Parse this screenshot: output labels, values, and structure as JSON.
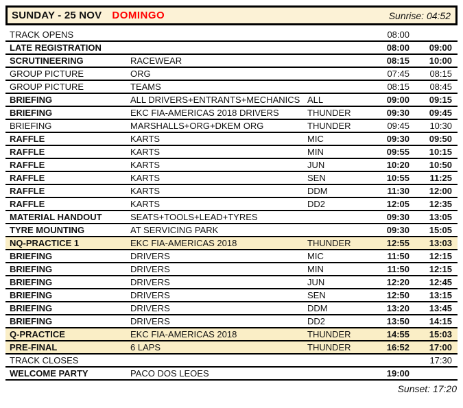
{
  "header": {
    "day_title": "SUNDAY - 25 NOV",
    "day_name_local": "DOMINGO",
    "sunrise_label": "Sunrise: 04:52"
  },
  "footer": {
    "sunset_label": "Sunset: 17:20"
  },
  "colors": {
    "header_background": "#FCF2D6",
    "highlight_row_background": "#FAEEC6",
    "accent_red": "#FF0000",
    "text": "#111111"
  },
  "schedule": {
    "rows": [
      {
        "activity": "TRACK OPENS",
        "detail": "",
        "category": "",
        "start": "08:00",
        "end": "",
        "bold": false,
        "highlight": false
      },
      {
        "activity": "LATE REGISTRATION",
        "detail": "",
        "category": "",
        "start": "08:00",
        "end": "09:00",
        "bold": true,
        "highlight": false
      },
      {
        "activity": "SCRUTINEERING",
        "detail": "RACEWEAR",
        "category": "",
        "start": "08:15",
        "end": "10:00",
        "bold": true,
        "highlight": false
      },
      {
        "activity": "GROUP PICTURE",
        "detail": "ORG",
        "category": "",
        "start": "07:45",
        "end": "08:15",
        "bold": false,
        "highlight": false
      },
      {
        "activity": "GROUP PICTURE",
        "detail": "TEAMS",
        "category": "",
        "start": "08:15",
        "end": "08:45",
        "bold": false,
        "highlight": false
      },
      {
        "activity": "BRIEFING",
        "detail": "ALL DRIVERS+ENTRANTS+MECHANICS",
        "category": "ALL",
        "start": "09:00",
        "end": "09:15",
        "bold": true,
        "highlight": false
      },
      {
        "activity": "BRIEFING",
        "detail": "EKC FIA-AMERICAS 2018 DRIVERS",
        "category": "THUNDER",
        "start": "09:30",
        "end": "09:45",
        "bold": true,
        "highlight": false
      },
      {
        "activity": "BRIEFING",
        "detail": "MARSHALLS+ORG+DKEM ORG",
        "category": "THUNDER",
        "start": "09:45",
        "end": "10:30",
        "bold": false,
        "highlight": false
      },
      {
        "activity": "RAFFLE",
        "detail": "KARTS",
        "category": "MIC",
        "start": "09:30",
        "end": "09:50",
        "bold": true,
        "highlight": false
      },
      {
        "activity": "RAFFLE",
        "detail": "KARTS",
        "category": "MIN",
        "start": "09:55",
        "end": "10:15",
        "bold": true,
        "highlight": false
      },
      {
        "activity": "RAFFLE",
        "detail": "KARTS",
        "category": "JUN",
        "start": "10:20",
        "end": "10:50",
        "bold": true,
        "highlight": false
      },
      {
        "activity": "RAFFLE",
        "detail": "KARTS",
        "category": "SEN",
        "start": "10:55",
        "end": "11:25",
        "bold": true,
        "highlight": false
      },
      {
        "activity": "RAFFLE",
        "detail": "KARTS",
        "category": "DDM",
        "start": "11:30",
        "end": "12:00",
        "bold": true,
        "highlight": false
      },
      {
        "activity": "RAFFLE",
        "detail": "KARTS",
        "category": "DD2",
        "start": "12:05",
        "end": "12:35",
        "bold": true,
        "highlight": false
      },
      {
        "activity": "MATERIAL HANDOUT",
        "detail": "SEATS+TOOLS+LEAD+TYRES",
        "category": "",
        "start": "09:30",
        "end": "13:05",
        "bold": true,
        "highlight": false
      },
      {
        "activity": "TYRE MOUNTING",
        "detail": "AT SERVICING PARK",
        "category": "",
        "start": "09:30",
        "end": "15:05",
        "bold": true,
        "highlight": false
      },
      {
        "activity": "NQ-PRACTICE 1",
        "detail": "EKC FIA-AMERICAS 2018",
        "category": "THUNDER",
        "start": "12:55",
        "end": "13:03",
        "bold": true,
        "highlight": true
      },
      {
        "activity": "BRIEFING",
        "detail": "DRIVERS",
        "category": "MIC",
        "start": "11:50",
        "end": "12:15",
        "bold": true,
        "highlight": false
      },
      {
        "activity": "BRIEFING",
        "detail": "DRIVERS",
        "category": "MIN",
        "start": "11:50",
        "end": "12:15",
        "bold": true,
        "highlight": false
      },
      {
        "activity": "BRIEFING",
        "detail": "DRIVERS",
        "category": "JUN",
        "start": "12:20",
        "end": "12:45",
        "bold": true,
        "highlight": false
      },
      {
        "activity": "BRIEFING",
        "detail": "DRIVERS",
        "category": "SEN",
        "start": "12:50",
        "end": "13:15",
        "bold": true,
        "highlight": false
      },
      {
        "activity": "BRIEFING",
        "detail": "DRIVERS",
        "category": "DDM",
        "start": "13:20",
        "end": "13:45",
        "bold": true,
        "highlight": false
      },
      {
        "activity": "BRIEFING",
        "detail": "DRIVERS",
        "category": "DD2",
        "start": "13:50",
        "end": "14:15",
        "bold": true,
        "highlight": false
      },
      {
        "activity": "Q-PRACTICE",
        "detail": "EKC FIA-AMERICAS 2018",
        "category": "THUNDER",
        "start": "14:55",
        "end": "15:03",
        "bold": true,
        "highlight": true
      },
      {
        "activity": "PRE-FINAL",
        "detail": "6 LAPS",
        "category": "THUNDER",
        "start": "16:52",
        "end": "17:00",
        "bold": true,
        "highlight": true
      },
      {
        "activity": "TRACK CLOSES",
        "detail": "",
        "category": "",
        "start": "",
        "end": "17:30",
        "bold": false,
        "highlight": false
      },
      {
        "activity": "WELCOME PARTY",
        "detail": "PACO DOS LEOES",
        "category": "",
        "start": "19:00",
        "end": "",
        "bold": true,
        "highlight": false
      }
    ]
  }
}
